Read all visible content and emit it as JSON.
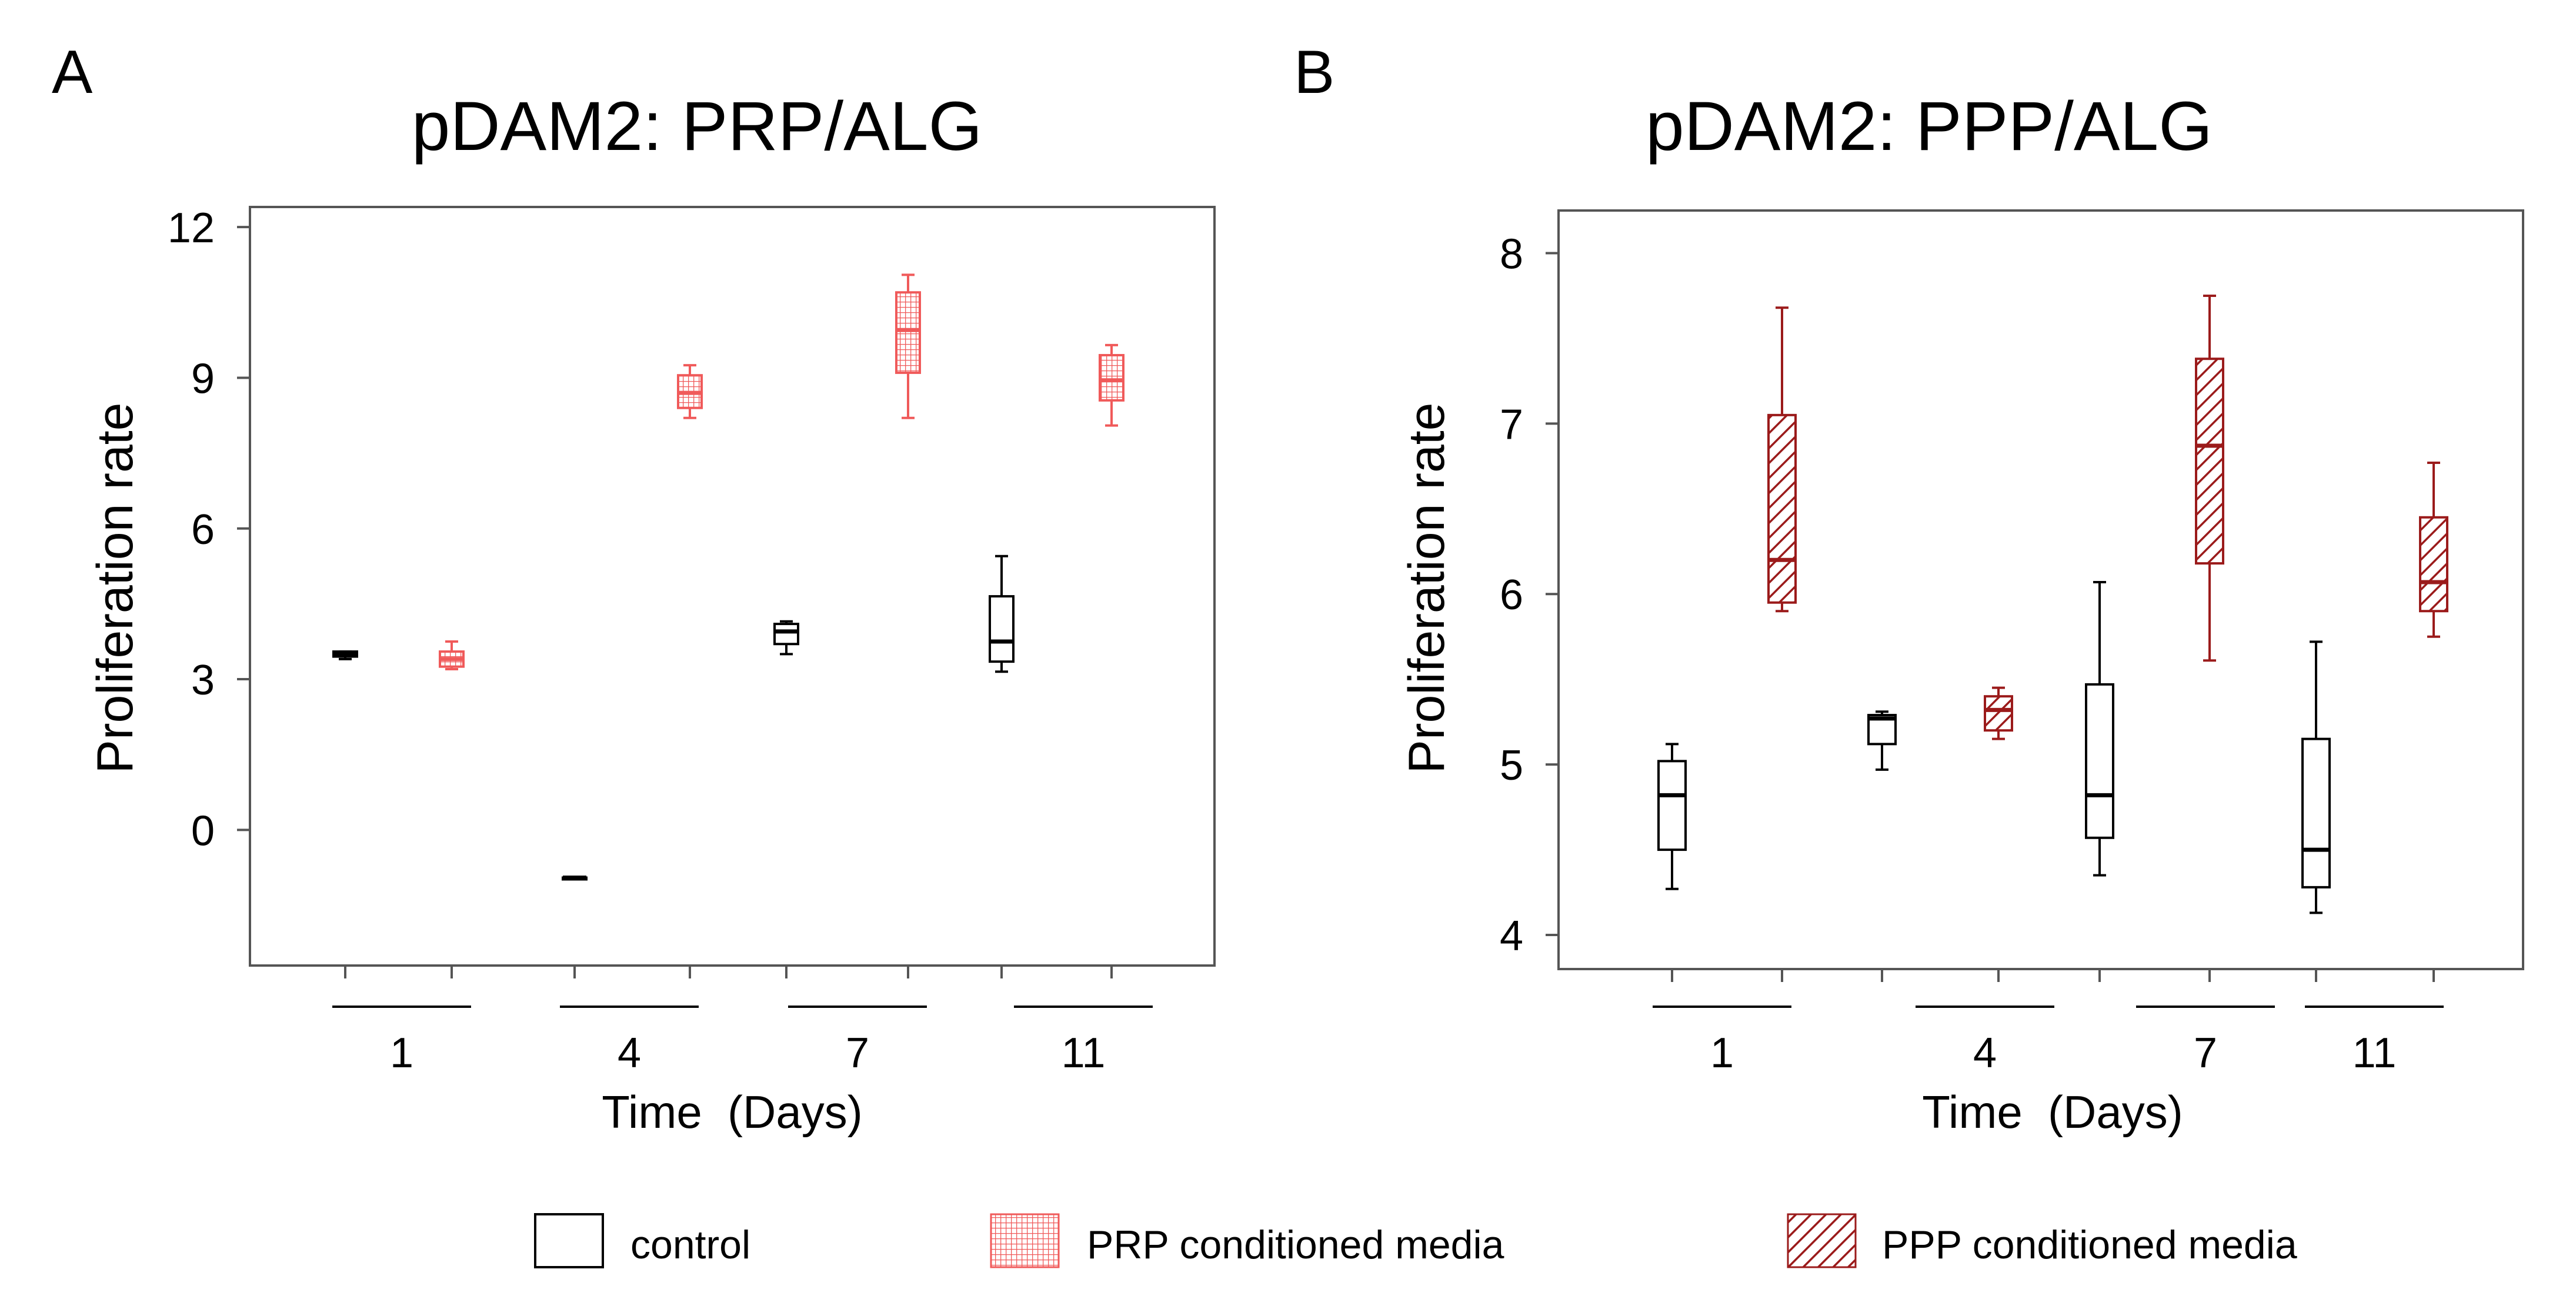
{
  "colors": {
    "control": "#000000",
    "prp": "#f05a5a",
    "ppp": "#9b1b1b",
    "frame": "#555555"
  },
  "chart_data": [
    {
      "panel_label": "A",
      "title": "pDAM2: PRP/ALG",
      "type": "box",
      "xlabel": "Time  (Days)",
      "ylabel": "Proliferation rate",
      "ylim": [
        -2.7,
        12.4
      ],
      "yticks": [
        "12",
        "9",
        "6",
        "3",
        "0"
      ],
      "ytick_values": [
        12,
        9,
        6,
        3,
        0
      ],
      "categories": [
        "1",
        "4",
        "7",
        "11"
      ],
      "series": [
        {
          "name": "control",
          "pattern": "none",
          "boxes": [
            {
              "day": "1",
              "min": 3.4,
              "q1": 3.45,
              "median": 3.5,
              "q3": 3.55,
              "max": 3.55
            },
            {
              "day": "4",
              "min": -0.95,
              "q1": -0.95,
              "median": -0.95,
              "q3": -0.95,
              "max": -0.95
            },
            {
              "day": "7",
              "min": 3.5,
              "q1": 3.7,
              "median": 3.95,
              "q3": 4.1,
              "max": 4.15
            },
            {
              "day": "11",
              "min": 3.15,
              "q1": 3.35,
              "median": 3.75,
              "q3": 4.65,
              "max": 5.45
            }
          ]
        },
        {
          "name": "PRP conditioned media",
          "pattern": "grid",
          "boxes": [
            {
              "day": "1",
              "min": 3.2,
              "q1": 3.25,
              "median": 3.4,
              "q3": 3.55,
              "max": 3.75
            },
            {
              "day": "4",
              "min": 8.2,
              "q1": 8.4,
              "median": 8.7,
              "q3": 9.05,
              "max": 9.25
            },
            {
              "day": "7",
              "min": 8.2,
              "q1": 9.1,
              "median": 9.95,
              "q3": 10.7,
              "max": 11.05
            },
            {
              "day": "11",
              "min": 8.05,
              "q1": 8.55,
              "median": 8.95,
              "q3": 9.45,
              "max": 9.65
            }
          ]
        }
      ]
    },
    {
      "panel_label": "B",
      "title": "pDAM2: PPP/ALG",
      "type": "box",
      "xlabel": "Time  (Days)",
      "ylabel": "Proliferation rate",
      "ylim": [
        3.8,
        8.25
      ],
      "yticks": [
        "8",
        "7",
        "6",
        "5",
        "4"
      ],
      "ytick_values": [
        8,
        7,
        6,
        5,
        4
      ],
      "categories": [
        "1",
        "4",
        "7",
        "11"
      ],
      "series": [
        {
          "name": "control",
          "pattern": "none",
          "boxes": [
            {
              "day": "1",
              "min": 4.27,
              "q1": 4.5,
              "median": 4.82,
              "q3": 5.02,
              "max": 5.12
            },
            {
              "day": "4",
              "min": 4.97,
              "q1": 5.12,
              "median": 5.27,
              "q3": 5.29,
              "max": 5.31
            },
            {
              "day": "7",
              "min": 4.35,
              "q1": 4.57,
              "median": 4.82,
              "q3": 5.47,
              "max": 6.07
            },
            {
              "day": "11",
              "min": 4.13,
              "q1": 4.28,
              "median": 4.5,
              "q3": 5.15,
              "max": 5.72
            }
          ]
        },
        {
          "name": "PPP conditioned media",
          "pattern": "diagonal",
          "boxes": [
            {
              "day": "1",
              "min": 5.9,
              "q1": 5.95,
              "median": 6.2,
              "q3": 7.05,
              "max": 7.68
            },
            {
              "day": "4",
              "min": 5.15,
              "q1": 5.2,
              "median": 5.32,
              "q3": 5.4,
              "max": 5.45
            },
            {
              "day": "7",
              "min": 5.61,
              "q1": 6.18,
              "median": 6.87,
              "q3": 7.38,
              "max": 7.75
            },
            {
              "day": "11",
              "min": 5.75,
              "q1": 5.9,
              "median": 6.07,
              "q3": 6.45,
              "max": 6.77
            }
          ]
        }
      ]
    }
  ],
  "legend": {
    "items": [
      {
        "label": "control",
        "pattern": "none"
      },
      {
        "label": "PRP conditioned media",
        "pattern": "grid"
      },
      {
        "label": "PPP conditioned media",
        "pattern": "diagonal"
      }
    ]
  }
}
